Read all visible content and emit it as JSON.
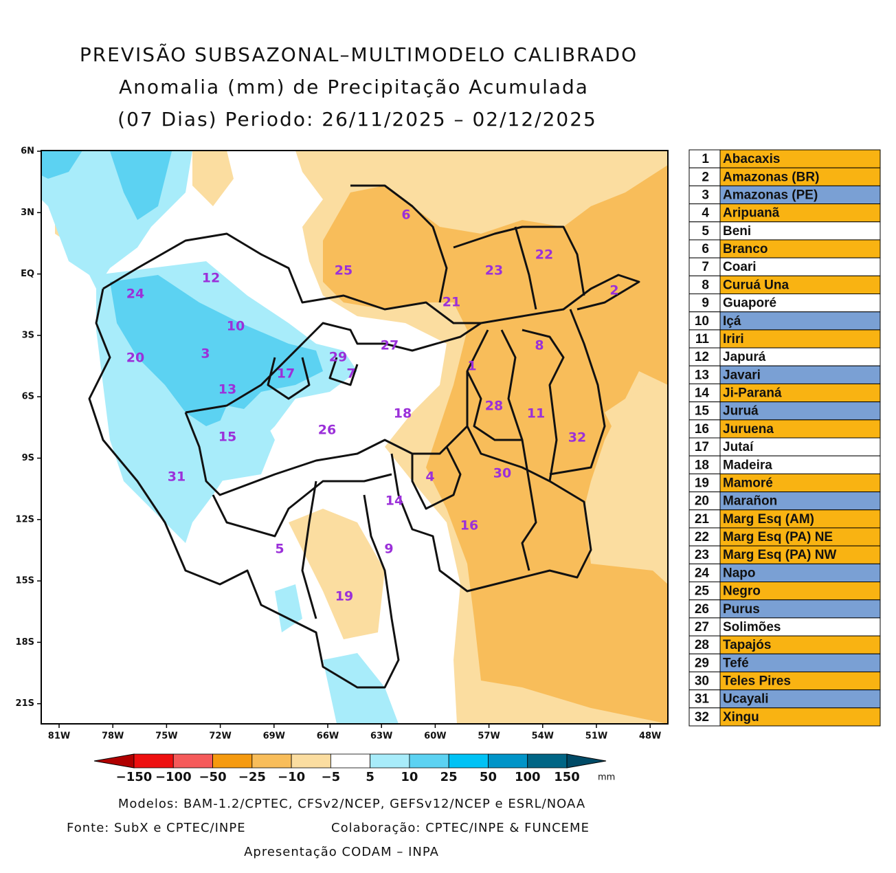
{
  "title": [
    "PREVISÃO SUBSAZONAL–MULTIMODELO CALIBRADO",
    "Anomalia (mm) de Precipitação Acumulada",
    "(07 Dias) Periodo: 26/11/2025 – 02/12/2025"
  ],
  "map": {
    "lat_labels": [
      "6N",
      "3N",
      "EQ",
      "3S",
      "6S",
      "9S",
      "12S",
      "15S",
      "18S",
      "21S"
    ],
    "lon_labels": [
      "81W",
      "78W",
      "75W",
      "72W",
      "69W",
      "66W",
      "63W",
      "60W",
      "57W",
      "54W",
      "51W",
      "48W"
    ],
    "basin_labels": [
      "6",
      "22",
      "2",
      "25",
      "23",
      "21",
      "12",
      "24",
      "10",
      "3",
      "20",
      "27",
      "8",
      "29",
      "7",
      "17",
      "1",
      "13",
      "28",
      "11",
      "18",
      "26",
      "15",
      "32",
      "31",
      "4",
      "30",
      "14",
      "16",
      "5",
      "9",
      "19"
    ]
  },
  "basins_table": [
    {
      "number": "1",
      "name": "Abacaxis",
      "color": "#f9b312"
    },
    {
      "number": "2",
      "name": "Amazonas (BR)",
      "color": "#f9b312"
    },
    {
      "number": "3",
      "name": "Amazonas (PE)",
      "color": "#7aa0d4"
    },
    {
      "number": "4",
      "name": "Aripuanã",
      "color": "#f9b312"
    },
    {
      "number": "5",
      "name": "Beni",
      "color": "#ffffff"
    },
    {
      "number": "6",
      "name": "Branco",
      "color": "#f9b312"
    },
    {
      "number": "7",
      "name": "Coari",
      "color": "#ffffff"
    },
    {
      "number": "8",
      "name": "Curuá Una",
      "color": "#f9b312"
    },
    {
      "number": "9",
      "name": "Guaporé",
      "color": "#ffffff"
    },
    {
      "number": "10",
      "name": "Içá",
      "color": "#7aa0d4"
    },
    {
      "number": "11",
      "name": "Iriri",
      "color": "#f9b312"
    },
    {
      "number": "12",
      "name": "Japurá",
      "color": "#ffffff"
    },
    {
      "number": "13",
      "name": "Javari",
      "color": "#7aa0d4"
    },
    {
      "number": "14",
      "name": "Ji-Paraná",
      "color": "#f9b312"
    },
    {
      "number": "15",
      "name": "Juruá",
      "color": "#7aa0d4"
    },
    {
      "number": "16",
      "name": "Juruena",
      "color": "#f9b312"
    },
    {
      "number": "17",
      "name": "Jutaí",
      "color": "#ffffff"
    },
    {
      "number": "18",
      "name": "Madeira",
      "color": "#ffffff"
    },
    {
      "number": "19",
      "name": "Mamoré",
      "color": "#f9b312"
    },
    {
      "number": "20",
      "name": "Marañon",
      "color": "#7aa0d4"
    },
    {
      "number": "21",
      "name": "Marg Esq (AM)",
      "color": "#f9b312"
    },
    {
      "number": "22",
      "name": "Marg Esq (PA) NE",
      "color": "#f9b312"
    },
    {
      "number": "23",
      "name": "Marg Esq (PA) NW",
      "color": "#f9b312"
    },
    {
      "number": "24",
      "name": "Napo",
      "color": "#7aa0d4"
    },
    {
      "number": "25",
      "name": "Negro",
      "color": "#f9b312"
    },
    {
      "number": "26",
      "name": "Purus",
      "color": "#7aa0d4"
    },
    {
      "number": "27",
      "name": "Solimões",
      "color": "#ffffff"
    },
    {
      "number": "28",
      "name": "Tapajós",
      "color": "#f9b312"
    },
    {
      "number": "29",
      "name": "Tefé",
      "color": "#7aa0d4"
    },
    {
      "number": "30",
      "name": "Teles Pires",
      "color": "#f9b312"
    },
    {
      "number": "31",
      "name": "Ucayali",
      "color": "#7aa0d4"
    },
    {
      "number": "32",
      "name": "Xingu",
      "color": "#f9b312"
    }
  ],
  "colorbar": {
    "labels": [
      "−150",
      "−100",
      "−50",
      "−25",
      "−10",
      "−5",
      "5",
      "10",
      "25",
      "50",
      "100",
      "150"
    ],
    "colors": [
      "#b00000",
      "#ee1010",
      "#f55a5a",
      "#f59a10",
      "#f8bd5a",
      "#fbdda0",
      "#ffffff",
      "#a8ecfa",
      "#5cd2f2",
      "#00c2f5",
      "#0094c8",
      "#006585",
      "#004a66"
    ],
    "unit": "mm"
  },
  "footer": {
    "models": "Modelos: BAM-1.2/CPTEC, CFSv2/NCEP, GEFSv12/NCEP e ESRL/NOAA",
    "source": "Fonte: SubX e CPTEC/INPE",
    "collaboration": "Colaboração: CPTEC/INPE & FUNCEME",
    "presentation": "Apresentação CODAM – INPA"
  }
}
